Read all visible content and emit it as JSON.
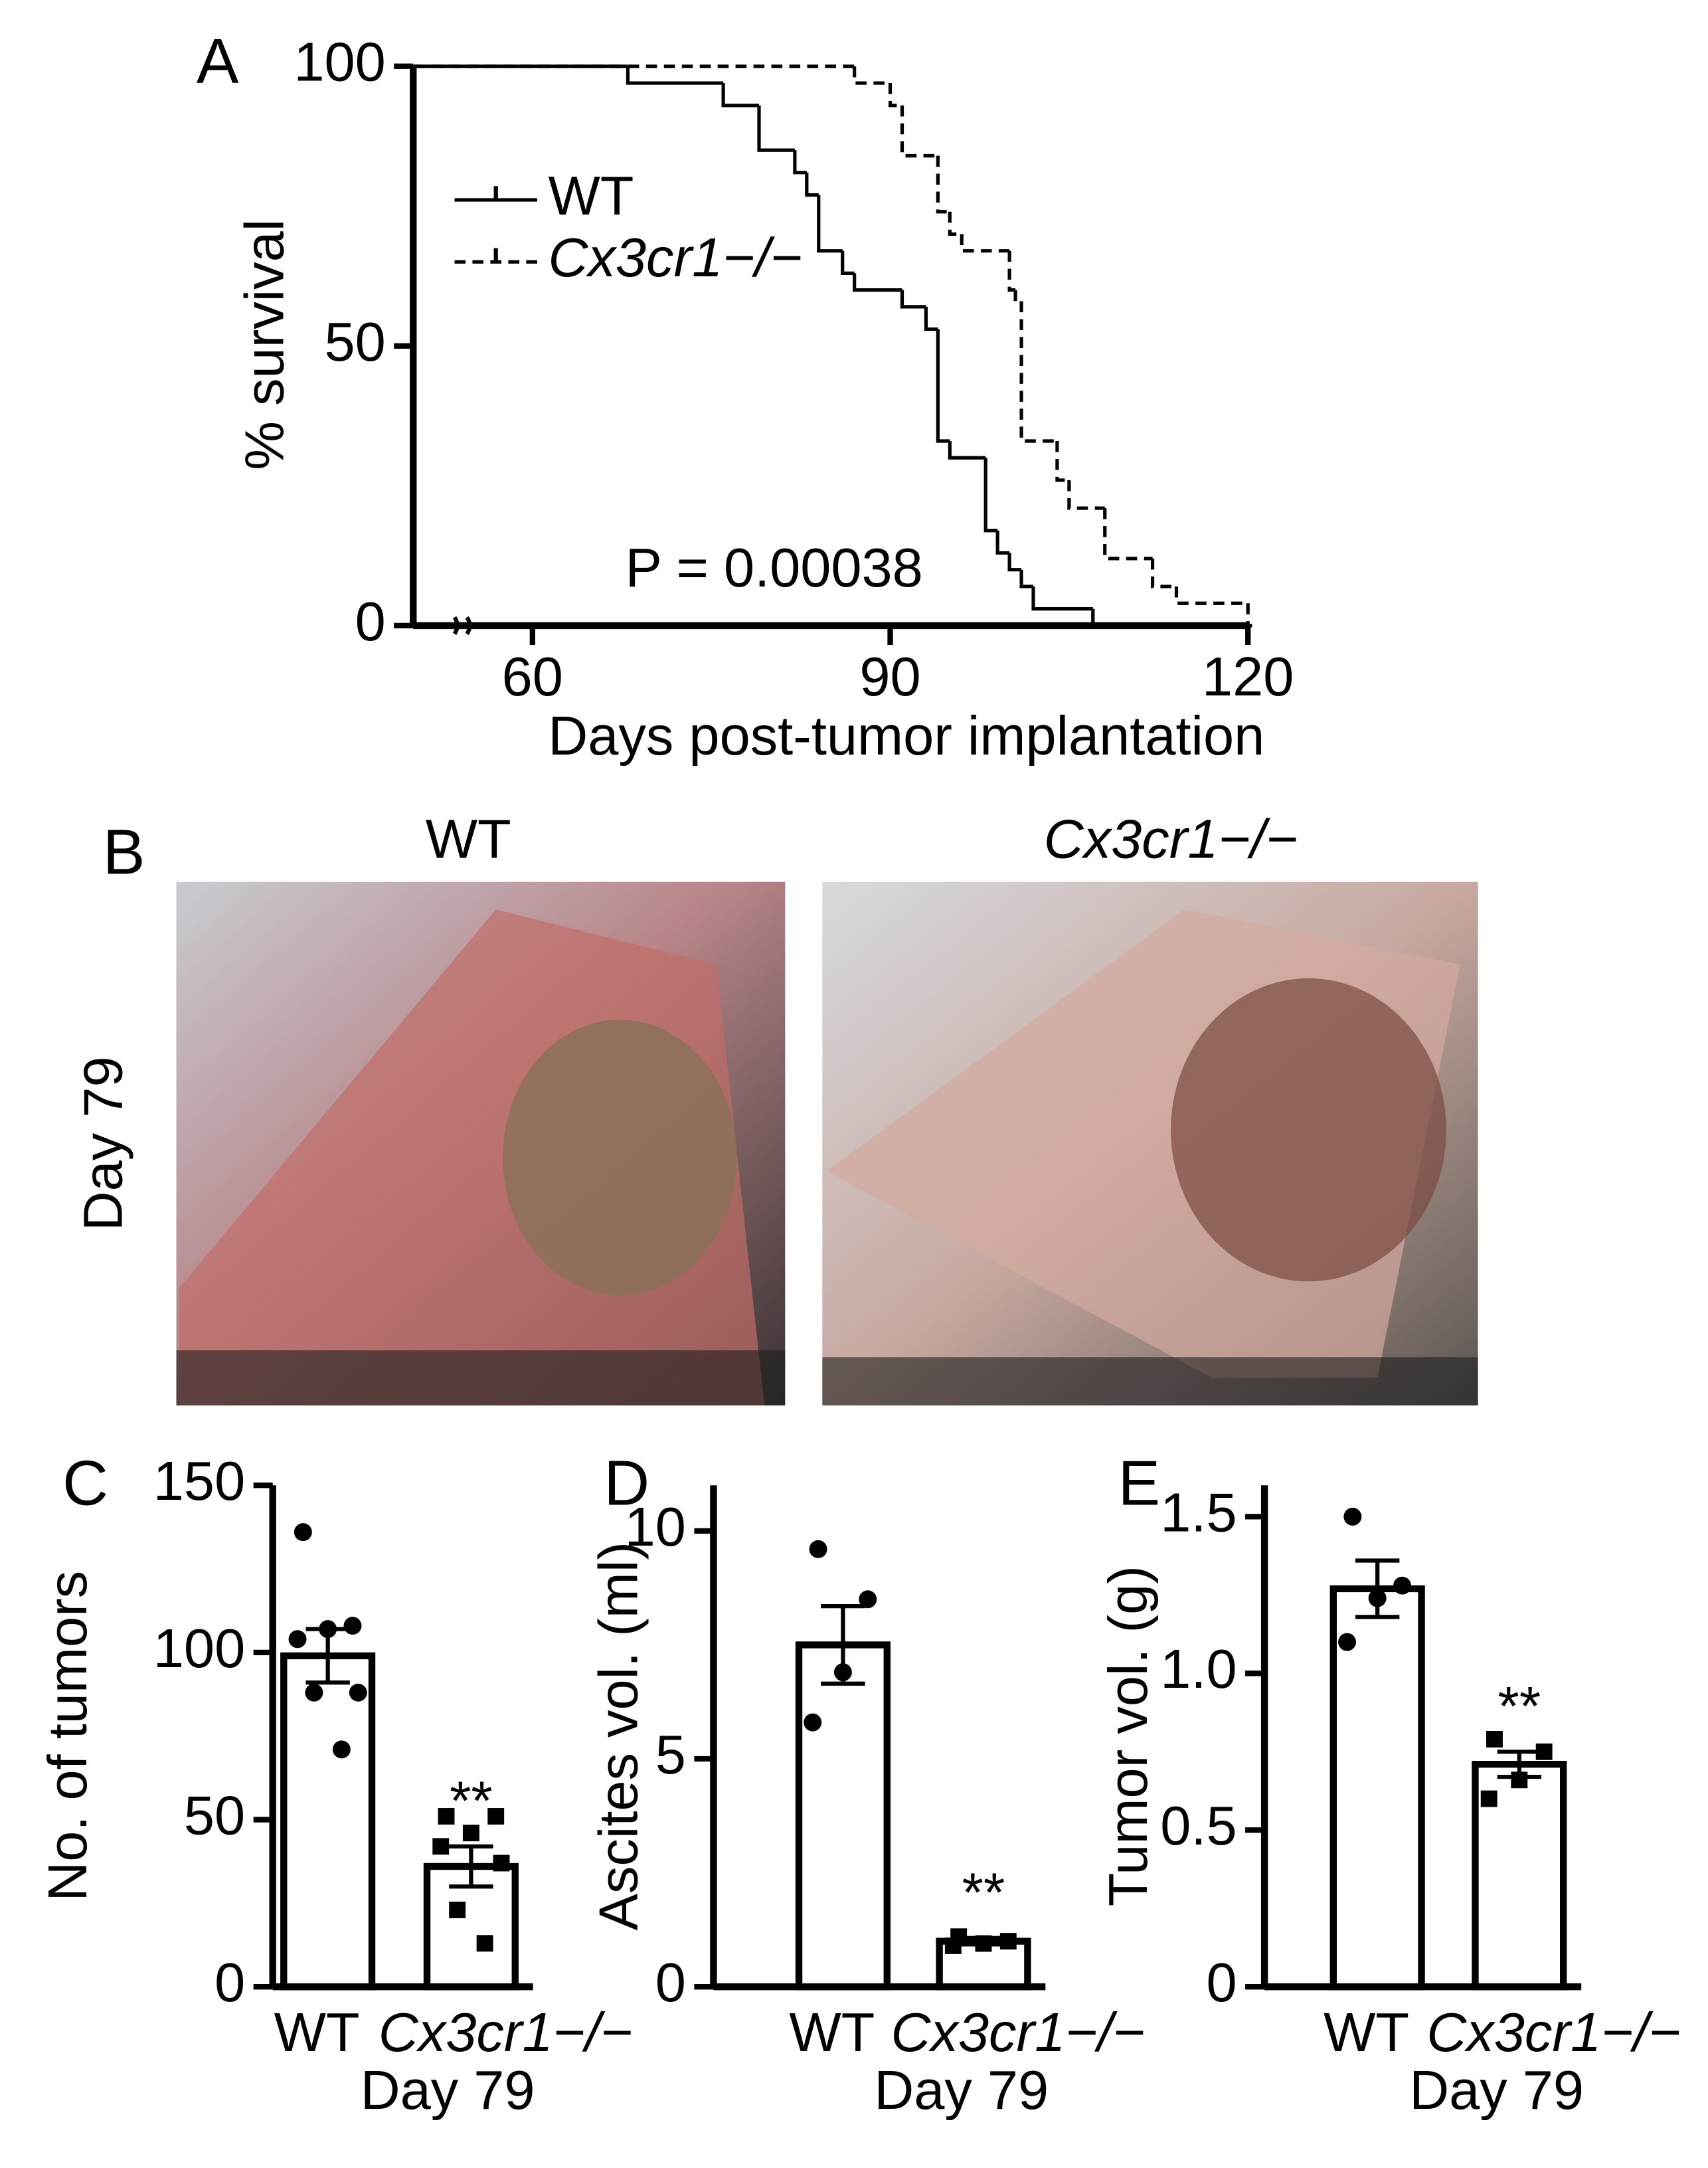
{
  "chart_data": [
    {
      "type": "survival",
      "panel": "A",
      "ylabel": "% survival",
      "xlabel": "Days post-tumor implantation",
      "annotation": "P = 0.00038",
      "xlim": [
        50,
        120
      ],
      "xticks": [
        60,
        90,
        120
      ],
      "ylim": [
        0,
        100
      ],
      "yticks": [
        0,
        50,
        100
      ],
      "series": [
        {
          "name": "WT",
          "color": "#000000",
          "dashed": false,
          "x": [
            50,
            68,
            76,
            79,
            82,
            83,
            84,
            86,
            87,
            91,
            93,
            94,
            95,
            98,
            99,
            100,
            101,
            102,
            107
          ],
          "values": [
            100,
            97,
            93,
            85,
            81,
            77,
            67,
            63,
            60,
            57,
            53,
            33,
            30,
            17,
            13,
            10,
            7,
            3,
            0
          ]
        },
        {
          "name": "Cx3cr1−/−",
          "color": "#000000",
          "dashed": true,
          "x": [
            50,
            87,
            90,
            91,
            94,
            95,
            96,
            100,
            100.5,
            101,
            104,
            105,
            108,
            112,
            114,
            120
          ],
          "values": [
            100,
            97,
            93,
            84,
            74,
            70,
            67,
            60,
            58,
            33,
            26,
            21,
            12,
            7,
            4,
            0
          ]
        }
      ]
    },
    {
      "type": "bar",
      "panel": "C",
      "ylabel": "No. of tumors",
      "xlabel": "Day 79",
      "categories": [
        "WT",
        "Cx3cr1−/−"
      ],
      "values": [
        99,
        36
      ],
      "errors": [
        8,
        6
      ],
      "points": [
        [
          136,
          108,
          107,
          104,
          88,
          88,
          71
        ],
        [
          51,
          51,
          46,
          42,
          37,
          23,
          13
        ]
      ],
      "significance": [
        null,
        "**"
      ],
      "ylim": [
        0,
        150
      ],
      "yticks": [
        0,
        50,
        100,
        150
      ]
    },
    {
      "type": "bar",
      "panel": "D",
      "ylabel": "Ascites vol. (ml)",
      "xlabel": "Day 79",
      "categories": [
        "WT",
        "Cx3cr1−/−"
      ],
      "values": [
        7.5,
        1.0
      ],
      "errors": [
        0.85,
        0.07
      ],
      "points": [
        [
          9.6,
          8.5,
          6.9,
          5.8
        ],
        [
          1.1,
          1.0,
          0.95,
          0.9
        ]
      ],
      "significance": [
        null,
        "**"
      ],
      "ylim": [
        0,
        11
      ],
      "yticks": [
        0,
        5,
        10
      ]
    },
    {
      "type": "bar",
      "panel": "E",
      "ylabel": "Tumor vol. (g)",
      "xlabel": "Day 79",
      "categories": [
        "WT",
        "Cx3cr1−/−"
      ],
      "values": [
        1.27,
        0.71
      ],
      "errors": [
        0.09,
        0.04
      ],
      "points": [
        [
          1.5,
          1.28,
          1.24,
          1.1
        ],
        [
          0.79,
          0.75,
          0.66,
          0.6
        ]
      ],
      "significance": [
        null,
        "**"
      ],
      "ylim": [
        0,
        1.6
      ],
      "yticks": [
        0,
        0.5,
        {
          "value": 1,
          "label": "1.0"
        },
        1.5
      ]
    }
  ],
  "images": {
    "panel": "B",
    "row_label": "Day 79",
    "columns": [
      "WT",
      "Cx3cr1−/−"
    ]
  }
}
